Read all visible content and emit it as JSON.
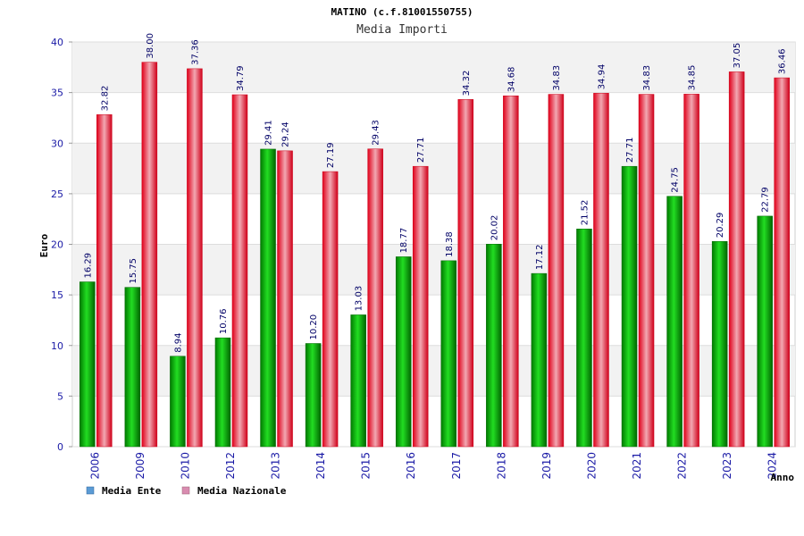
{
  "chart_data": {
    "type": "bar",
    "title": "MATINO (c.f.81001550755)",
    "subtitle": "Media Importi",
    "ylabel": "Euro",
    "xlabel": "Anno",
    "ylim": [
      0,
      40
    ],
    "yticks": [
      0,
      5,
      10,
      15,
      20,
      25,
      30,
      35,
      40
    ],
    "grid": true,
    "legend_position": "bottom-left",
    "categories": [
      "2006",
      "2009",
      "2010",
      "2012",
      "2013",
      "2014",
      "2015",
      "2016",
      "2017",
      "2018",
      "2019",
      "2020",
      "2021",
      "2022",
      "2023",
      "2024"
    ],
    "series": [
      {
        "name": "Media Ente",
        "values": [
          16.29,
          15.75,
          8.94,
          10.76,
          29.41,
          10.2,
          13.03,
          18.77,
          18.38,
          20.02,
          17.12,
          21.52,
          27.71,
          24.75,
          20.29,
          22.79
        ],
        "labels": [
          "16.29",
          "15.75",
          "8.94",
          "10.76",
          "29.41",
          "10.20",
          "13.03",
          "18.77",
          "18.38",
          "20.02",
          "17.12",
          "21.52",
          "27.71",
          "24.75",
          "20.29",
          "22.79"
        ],
        "bar_color": "#00bb00",
        "legend_color": "#5b9bd5"
      },
      {
        "name": "Media Nazionale",
        "values": [
          32.82,
          38.0,
          37.36,
          34.79,
          29.24,
          27.19,
          29.43,
          27.71,
          34.32,
          34.68,
          34.83,
          34.94,
          34.83,
          34.85,
          37.05,
          36.46
        ],
        "labels": [
          "32.82",
          "38.00",
          "37.36",
          "34.79",
          "29.24",
          "27.19",
          "29.43",
          "27.71",
          "34.32",
          "34.68",
          "34.83",
          "34.94",
          "34.83",
          "34.85",
          "37.05",
          "36.46"
        ],
        "bar_color": "#ee1c2e",
        "legend_color": "#d98cb0"
      }
    ]
  }
}
